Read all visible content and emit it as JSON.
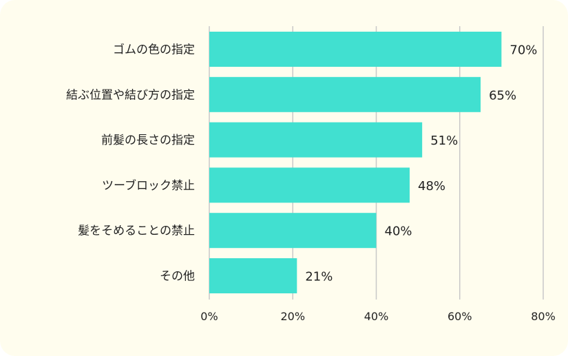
{
  "chart_data": {
    "type": "bar",
    "orientation": "horizontal",
    "categories": [
      "ゴムの色の指定",
      "結ぶ位置や結び方の指定",
      "前髪の長さの指定",
      "ツーブロック禁止",
      "髪をそめることの禁止",
      "その他"
    ],
    "values": [
      70,
      65,
      51,
      48,
      40,
      21
    ],
    "value_labels": [
      "70%",
      "65%",
      "51%",
      "48%",
      "40%",
      "21%"
    ],
    "xlim": [
      0,
      80
    ],
    "xticks": [
      0,
      20,
      40,
      60,
      80
    ],
    "xtick_labels": [
      "0%",
      "20%",
      "40%",
      "60%",
      "80%"
    ],
    "grid": true,
    "bar_color": "#41e0d0",
    "grid_color": "#c8c8c8",
    "background_color": "#fffdee"
  }
}
